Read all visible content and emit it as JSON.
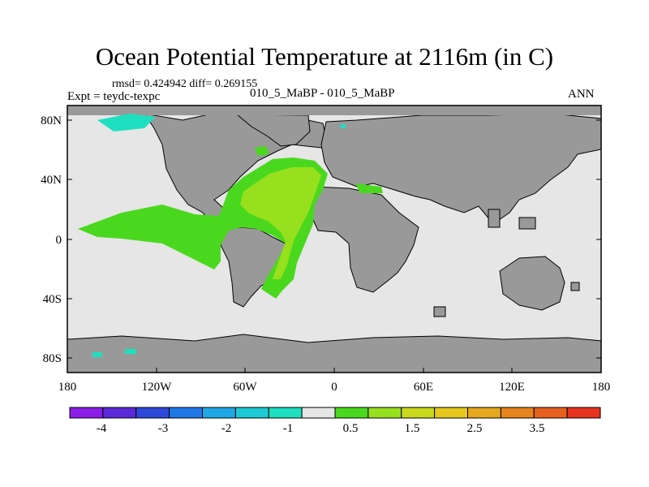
{
  "title": "Ocean Potential Temperature at 2116m (in C)",
  "stats": "rmsd= 0.424942 diff= 0.269155",
  "expt": "Expt = teydc-texpc",
  "center_label": "010_5_MaBP - 010_5_MaBP",
  "season": "ANN",
  "lat_ticks": [
    "80N",
    "40N",
    "0",
    "40S",
    "80S"
  ],
  "lon_ticks": [
    "180",
    "120W",
    "60W",
    "0",
    "60E",
    "120E",
    "180"
  ],
  "legend": {
    "labels": [
      "-4",
      "-3",
      "-2",
      "-1",
      "0.5",
      "1.5",
      "2.5",
      "3.5"
    ],
    "colors": [
      "#8a1ee6",
      "#5a2ad8",
      "#2e48d8",
      "#1e78e6",
      "#1ea8e6",
      "#1ecad6",
      "#1ee0c0",
      "#e6e6e6",
      "#4ad81e",
      "#96e01e",
      "#cad81e",
      "#e6c81e",
      "#e6a81e",
      "#e6841e",
      "#e6601e",
      "#e6321e"
    ]
  },
  "colors": {
    "land": "#999999",
    "ocean_near_zero": "#e6e6e6",
    "warm_anomaly": "#4ad81e",
    "stronger_warm_anomaly": "#96e01e",
    "cold_anomaly": "#1ee0c0"
  }
}
